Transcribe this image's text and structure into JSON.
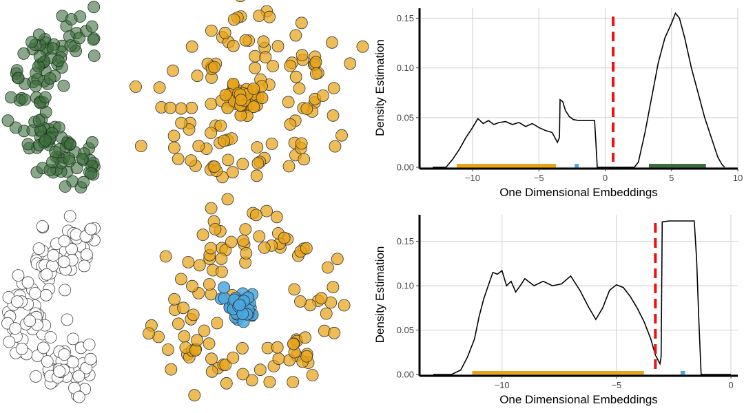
{
  "colors": {
    "green": "#3f6e3f",
    "orange": "#e8a317",
    "blue": "#4aa8e0",
    "white": "#ffffff",
    "cut": "#ee1111",
    "grid": "#d6d6d6"
  },
  "chart_data": [
    {
      "type": "scatter",
      "description_key": "top-left clusters",
      "groups": [
        {
          "shape": "moon",
          "color": "green"
        },
        {
          "shape": "ring+core",
          "color": "orange"
        }
      ]
    },
    {
      "type": "line",
      "title": "",
      "xlabel": "One Dimensional Embeddings",
      "ylabel": "Density Estimation",
      "xlim": [
        -14,
        10
      ],
      "ylim": [
        0,
        0.16
      ],
      "xticks": [
        -10,
        -5,
        0,
        5,
        10
      ],
      "xtick_labels": [
        "−10",
        "−5",
        "0",
        "5",
        "10"
      ],
      "yticks": [
        0,
        0.05,
        0.1,
        0.15
      ],
      "ytick_labels": [
        "0.00",
        "0.05",
        "0.10",
        "0.15"
      ],
      "grid": true,
      "cut": 0.6,
      "curve": {
        "x": [
          -13.0,
          -12.0,
          -11.5,
          -11.0,
          -10.5,
          -10.0,
          -9.6,
          -9.2,
          -8.8,
          -8.4,
          -8.0,
          -7.5,
          -7.0,
          -6.5,
          -6.0,
          -5.5,
          -5.0,
          -4.5,
          -4.0,
          -3.6,
          -3.45,
          -3.4,
          -3.2,
          -3.0,
          -2.7,
          -2.4,
          -2.0,
          -1.5,
          -0.8,
          -0.7,
          -0.6,
          2.2,
          2.5,
          3.0,
          3.5,
          4.0,
          4.5,
          5.0,
          5.3,
          5.6,
          6.0,
          6.5,
          7.0,
          7.5,
          8.0,
          8.5,
          8.8,
          9.0
        ],
        "y": [
          0.0,
          0.0,
          0.008,
          0.018,
          0.03,
          0.04,
          0.049,
          0.044,
          0.047,
          0.043,
          0.045,
          0.046,
          0.043,
          0.045,
          0.041,
          0.044,
          0.04,
          0.037,
          0.035,
          0.025,
          0.03,
          0.068,
          0.066,
          0.057,
          0.051,
          0.048,
          0.047,
          0.047,
          0.047,
          0.025,
          0.0,
          0.0,
          0.005,
          0.035,
          0.07,
          0.105,
          0.13,
          0.145,
          0.155,
          0.15,
          0.13,
          0.1,
          0.075,
          0.05,
          0.03,
          0.01,
          0.003,
          0.0
        ]
      },
      "rug": [
        {
          "range": [
            -11.2,
            -3.7
          ],
          "color": "orange"
        },
        {
          "range": [
            -2.3,
            -2.0
          ],
          "color": "blue"
        },
        {
          "range": [
            3.3,
            7.6
          ],
          "color": "green"
        }
      ]
    },
    {
      "type": "scatter",
      "description_key": "bottom-left clusters",
      "groups": [
        {
          "shape": "moon",
          "color": "white"
        },
        {
          "shape": "ring",
          "color": "orange"
        },
        {
          "shape": "core",
          "color": "blue"
        }
      ]
    },
    {
      "type": "line",
      "title": "",
      "xlabel": "One Dimensional Embeddings",
      "ylabel": "Density Estimation",
      "xlim": [
        -13.6,
        0.3
      ],
      "ylim": [
        0,
        0.18
      ],
      "xticks": [
        -10,
        -5,
        0
      ],
      "xtick_labels": [
        "−10",
        "−5",
        "0"
      ],
      "yticks": [
        0,
        0.05,
        0.1,
        0.15
      ],
      "ytick_labels": [
        "0.00",
        "0.05",
        "0.10",
        "0.15"
      ],
      "grid": true,
      "cut": -3.3,
      "curve": {
        "x": [
          -13.0,
          -12.2,
          -11.8,
          -11.5,
          -11.2,
          -11.0,
          -10.8,
          -10.6,
          -10.4,
          -10.2,
          -10.0,
          -9.8,
          -9.6,
          -9.4,
          -9.2,
          -9.0,
          -8.6,
          -8.2,
          -7.8,
          -7.4,
          -7.0,
          -6.6,
          -6.2,
          -5.9,
          -5.6,
          -5.3,
          -5.0,
          -4.7,
          -4.4,
          -4.1,
          -3.8,
          -3.5,
          -3.3,
          -3.1,
          -3.05,
          -3.0,
          -2.7,
          -2.2,
          -1.8,
          -1.6,
          -1.5,
          -1.4,
          -1.3,
          0.0
        ],
        "y": [
          0.0,
          0.0,
          0.005,
          0.02,
          0.04,
          0.065,
          0.085,
          0.1,
          0.115,
          0.113,
          0.117,
          0.1,
          0.105,
          0.093,
          0.1,
          0.108,
          0.1,
          0.105,
          0.1,
          0.102,
          0.111,
          0.095,
          0.075,
          0.062,
          0.075,
          0.095,
          0.101,
          0.098,
          0.088,
          0.075,
          0.06,
          0.04,
          0.022,
          0.012,
          0.02,
          0.172,
          0.173,
          0.173,
          0.173,
          0.173,
          0.13,
          0.06,
          0.0,
          0.0
        ]
      },
      "rug": [
        {
          "range": [
            -11.3,
            -3.8
          ],
          "color": "orange"
        },
        {
          "range": [
            -2.2,
            -2.0
          ],
          "color": "blue"
        }
      ]
    }
  ]
}
